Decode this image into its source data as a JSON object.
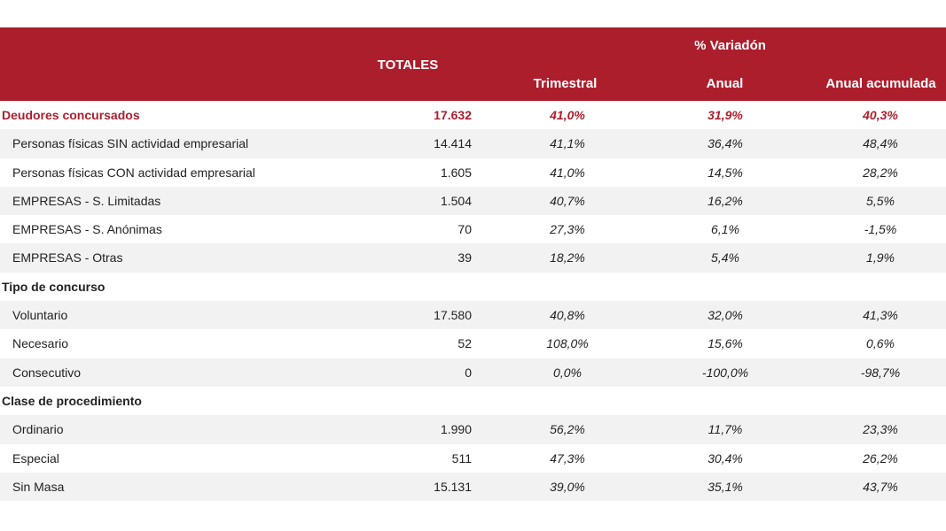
{
  "header": {
    "totales": "TOTALES",
    "variacion": "% Variadón",
    "trimestral": "Trimestral",
    "anual": "Anual",
    "anual_acumulada": "Anual acumulada"
  },
  "colors": {
    "accent": "#ad1e2c",
    "row_shade": "#f2f2f2"
  },
  "rows": [
    {
      "type": "total",
      "label": "Deudores concursados",
      "total": "17.632",
      "trimestral": "41,0%",
      "anual": "31,9%",
      "acumulada": "40,3%"
    },
    {
      "type": "item",
      "label": "Personas físicas SIN actividad empresarial",
      "total": "14.414",
      "trimestral": "41,1%",
      "anual": "36,4%",
      "acumulada": "48,4%"
    },
    {
      "type": "item",
      "label": "Personas físicas CON actividad empresarial",
      "total": "1.605",
      "trimestral": "41,0%",
      "anual": "14,5%",
      "acumulada": "28,2%"
    },
    {
      "type": "item",
      "label": "EMPRESAS - S. Limitadas",
      "total": "1.504",
      "trimestral": "40,7%",
      "anual": "16,2%",
      "acumulada": "5,5%"
    },
    {
      "type": "item",
      "label": "EMPRESAS - S. Anónimas",
      "total": "70",
      "trimestral": "27,3%",
      "anual": "6,1%",
      "acumulada": "-1,5%"
    },
    {
      "type": "item",
      "label": "EMPRESAS - Otras",
      "total": "39",
      "trimestral": "18,2%",
      "anual": "5,4%",
      "acumulada": "1,9%"
    },
    {
      "type": "section",
      "label": "Tipo de concurso",
      "total": "",
      "trimestral": "",
      "anual": "",
      "acumulada": ""
    },
    {
      "type": "item",
      "label": "Voluntario",
      "total": "17.580",
      "trimestral": "40,8%",
      "anual": "32,0%",
      "acumulada": "41,3%"
    },
    {
      "type": "item",
      "label": "Necesario",
      "total": "52",
      "trimestral": "108,0%",
      "anual": "15,6%",
      "acumulada": "0,6%"
    },
    {
      "type": "item",
      "label": "Consecutivo",
      "total": "0",
      "trimestral": "0,0%",
      "anual": "-100,0%",
      "acumulada": "-98,7%"
    },
    {
      "type": "section",
      "label": "Clase de procedimiento",
      "total": "",
      "trimestral": "",
      "anual": "",
      "acumulada": ""
    },
    {
      "type": "item",
      "label": "Ordinario",
      "total": "1.990",
      "trimestral": "56,2%",
      "anual": "11,7%",
      "acumulada": "23,3%"
    },
    {
      "type": "item",
      "label": "Especial",
      "total": "511",
      "trimestral": "47,3%",
      "anual": "30,4%",
      "acumulada": "26,2%"
    },
    {
      "type": "item",
      "label": "Sin Masa",
      "total": "15.131",
      "trimestral": "39,0%",
      "anual": "35,1%",
      "acumulada": "43,7%"
    }
  ]
}
